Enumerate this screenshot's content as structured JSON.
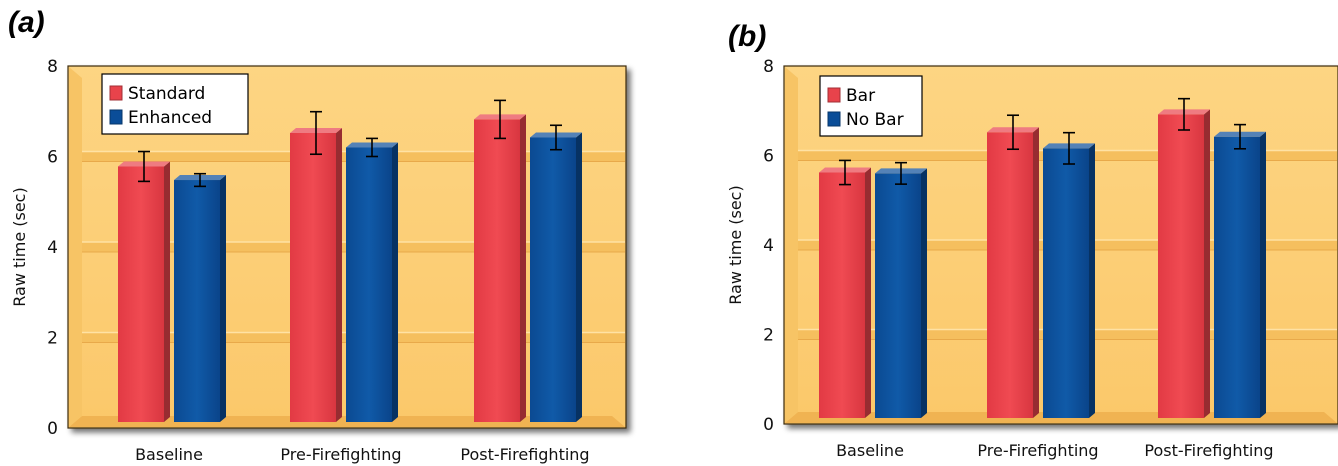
{
  "chart_data": [
    {
      "type": "bar",
      "panel_label": "(a)",
      "categories": [
        "Baseline",
        "Pre-Firefighting",
        "Post-Firefighting"
      ],
      "ylabel": "Raw time (sec)",
      "xlabel": "",
      "ylim": [
        0,
        8
      ],
      "yticks": [
        0,
        2,
        4,
        6,
        8
      ],
      "grid": true,
      "legend_position": "top-left",
      "series": [
        {
          "name": "Standard",
          "color": "#e8434b",
          "values": [
            5.78,
            6.52,
            6.82
          ],
          "error": [
            0.33,
            0.47,
            0.42
          ]
        },
        {
          "name": "Enhanced",
          "color": "#0a4d98",
          "values": [
            5.48,
            6.2,
            6.42
          ],
          "error": [
            0.14,
            0.2,
            0.27
          ]
        }
      ]
    },
    {
      "type": "bar",
      "panel_label": "(b)",
      "categories": [
        "Baseline",
        "Pre-Firefighting",
        "Post-Firefighting"
      ],
      "ylabel": "Raw time (sec)",
      "xlabel": "",
      "ylim": [
        0,
        8
      ],
      "yticks": [
        0,
        2,
        4,
        6,
        8
      ],
      "grid": true,
      "legend_position": "top-left",
      "series": [
        {
          "name": "Bar",
          "color": "#e8434b",
          "values": [
            5.62,
            6.52,
            6.92
          ],
          "error": [
            0.27,
            0.38,
            0.35
          ]
        },
        {
          "name": "No Bar",
          "color": "#0a4d98",
          "values": [
            5.6,
            6.16,
            6.42
          ],
          "error": [
            0.24,
            0.35,
            0.27
          ]
        }
      ]
    }
  ]
}
